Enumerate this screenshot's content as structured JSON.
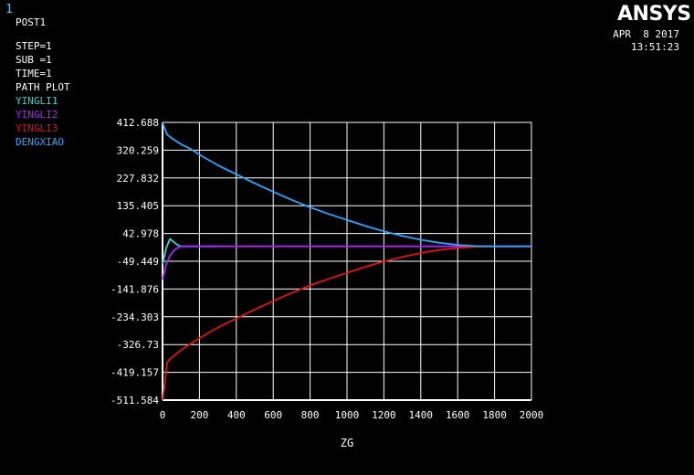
{
  "window": {
    "number": "1"
  },
  "brand": {
    "logo_text": "ANSYS"
  },
  "header": {
    "date": "APR  8 2017",
    "time": "13:51:23"
  },
  "info": {
    "lines": [
      "POST1",
      "STEP=1",
      "SUB =1",
      "TIME=1",
      "PATH PLOT"
    ]
  },
  "chart_data": {
    "type": "line",
    "title": "",
    "xlabel": "ZG",
    "ylabel": "",
    "xlim": [
      0,
      2000
    ],
    "ylim": [
      -511.584,
      412.688
    ],
    "x_ticks": [
      "0",
      "200",
      "400",
      "600",
      "800",
      "1000",
      "1200",
      "1400",
      "1600",
      "1800",
      "2000"
    ],
    "y_ticks": [
      "412.688",
      "320.259",
      "227.832",
      "135.405",
      "42.978",
      "-49.449",
      "-141.876",
      "-234.303",
      "-326.73",
      "-419.157",
      "-511.584"
    ],
    "grid": true,
    "legend_position": "top-left",
    "series": [
      {
        "name": "YINGLI1",
        "color": "#33d6d6",
        "x": [
          0,
          20,
          40,
          60,
          80,
          100,
          150,
          200,
          300
        ],
        "y": [
          -60,
          -5,
          25,
          15,
          5,
          0,
          0,
          0,
          0
        ]
      },
      {
        "name": "YINGLI2",
        "color": "#b020ff",
        "x": [
          0,
          20,
          40,
          60,
          80,
          100,
          150,
          200,
          400,
          800,
          1200,
          1600,
          2000
        ],
        "y": [
          -110,
          -60,
          -30,
          -15,
          -5,
          0,
          0,
          0,
          0,
          0,
          0,
          0,
          0
        ]
      },
      {
        "name": "YINGLI3",
        "color": "#e01515",
        "x": [
          0,
          10,
          25,
          50,
          100,
          150,
          200,
          300,
          400,
          500,
          600,
          700,
          800,
          900,
          1000,
          1100,
          1200,
          1300,
          1400,
          1500,
          1600,
          1700,
          1800
        ],
        "y": [
          -511,
          -470,
          -385,
          -370,
          -345,
          -325,
          -305,
          -270,
          -240,
          -210,
          -182,
          -155,
          -130,
          -108,
          -88,
          -68,
          -50,
          -35,
          -22,
          -12,
          -5,
          -1,
          0
        ]
      },
      {
        "name": "DENGXIAO",
        "color": "#2aa8ff",
        "x": [
          0,
          10,
          25,
          50,
          100,
          150,
          200,
          300,
          400,
          500,
          600,
          700,
          800,
          900,
          1000,
          1100,
          1200,
          1300,
          1400,
          1500,
          1600,
          1700,
          1800,
          2000
        ],
        "y": [
          412,
          395,
          372,
          360,
          340,
          325,
          305,
          270,
          240,
          210,
          182,
          155,
          130,
          108,
          88,
          68,
          50,
          35,
          22,
          12,
          5,
          1,
          0,
          0
        ]
      }
    ]
  }
}
